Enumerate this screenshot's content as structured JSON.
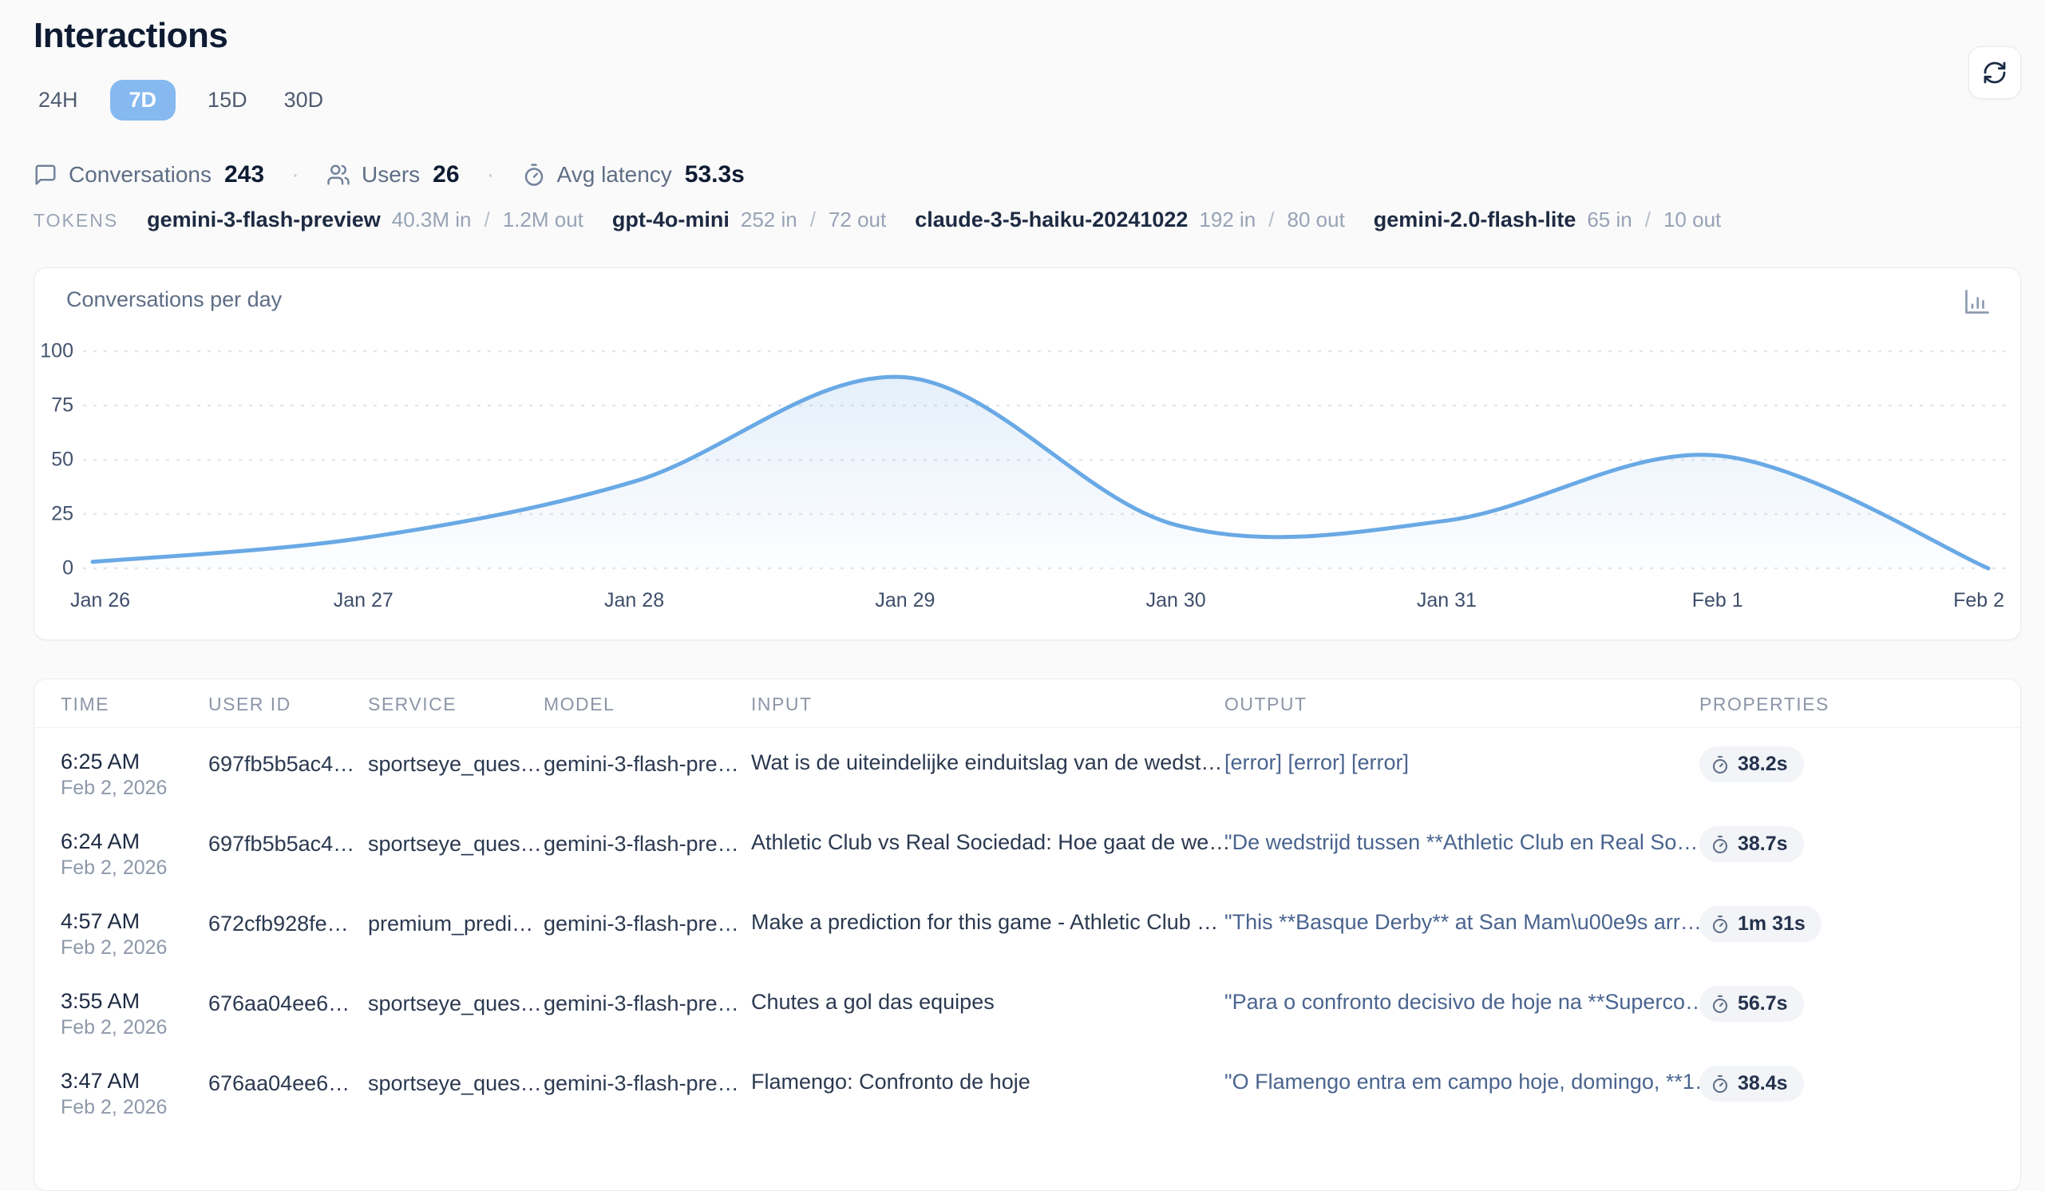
{
  "page": {
    "title": "Interactions"
  },
  "toolbar": {
    "refresh_icon": "refresh"
  },
  "time_range_tabs": [
    {
      "label": "24H",
      "active": false
    },
    {
      "label": "7D",
      "active": true
    },
    {
      "label": "15D",
      "active": false
    },
    {
      "label": "30D",
      "active": false
    }
  ],
  "stats_separator": "·",
  "stats": [
    {
      "icon": "chat-bubble-icon",
      "label": "Conversations",
      "value": "243"
    },
    {
      "icon": "users-icon",
      "label": "Users",
      "value": "26"
    },
    {
      "icon": "stopwatch-icon",
      "label": "Avg latency",
      "value": "53.3s"
    }
  ],
  "tokens": {
    "label": "TOKENS",
    "separator": "/",
    "models": [
      {
        "name": "gemini-3-flash-preview",
        "in": "40.3M in",
        "out": "1.2M out"
      },
      {
        "name": "gpt-4o-mini",
        "in": "252 in",
        "out": "72 out"
      },
      {
        "name": "claude-3-5-haiku-20241022",
        "in": "192 in",
        "out": "80 out"
      },
      {
        "name": "gemini-2.0-flash-lite",
        "in": "65 in",
        "out": "10 out"
      }
    ]
  },
  "chart_card": {
    "title": "Conversations per day",
    "icon": "bar-chart-icon"
  },
  "chart_data": {
    "type": "area",
    "title": "Conversations per day",
    "x": [
      "Jan 26",
      "Jan 27",
      "Jan 28",
      "Jan 29",
      "Jan 30",
      "Jan 31",
      "Feb 1",
      "Feb 2"
    ],
    "values": [
      3,
      14,
      40,
      88,
      20,
      22,
      52,
      0
    ],
    "ylim": [
      0,
      100
    ],
    "yticks": [
      0,
      25,
      50,
      75,
      100
    ],
    "grid": "dashed-horizontal",
    "line_color": "#69a9e5",
    "fill_color": "#7db3e6",
    "legend": "none"
  },
  "table": {
    "columns": [
      "TIME",
      "USER ID",
      "SERVICE",
      "MODEL",
      "INPUT",
      "OUTPUT",
      "PROPERTIES"
    ],
    "rows": [
      {
        "time": "6:25 AM",
        "date": "Feb 2, 2026",
        "user_id": "697fb5b5ac4…",
        "service": "sportseye_ques…",
        "model": "gemini-3-flash-pre…",
        "input": "Wat is de uiteindelijke einduitslag van de wedst…",
        "output": "[error] [error] [error]",
        "latency": "38.2s"
      },
      {
        "time": "6:24 AM",
        "date": "Feb 2, 2026",
        "user_id": "697fb5b5ac4…",
        "service": "sportseye_ques…",
        "model": "gemini-3-flash-pre…",
        "input": "Athletic Club vs Real Sociedad: Hoe gaat de we…",
        "output": "\"De wedstrijd tussen **Athletic Club en Real So…",
        "latency": "38.7s"
      },
      {
        "time": "4:57 AM",
        "date": "Feb 2, 2026",
        "user_id": "672cfb928fe…",
        "service": "premium_predi…",
        "model": "gemini-3-flash-pre…",
        "input": "Make a prediction for this game - Athletic Club …",
        "output": "\"This **Basque Derby** at San Mam\\u00e9s arr…",
        "latency": "1m 31s"
      },
      {
        "time": "3:55 AM",
        "date": "Feb 2, 2026",
        "user_id": "676aa04ee6…",
        "service": "sportseye_ques…",
        "model": "gemini-3-flash-pre…",
        "input": "Chutes a gol das equipes",
        "output": "\"Para o confronto decisivo de hoje na **Superco…",
        "latency": "56.7s"
      },
      {
        "time": "3:47 AM",
        "date": "Feb 2, 2026",
        "user_id": "676aa04ee6…",
        "service": "sportseye_ques…",
        "model": "gemini-3-flash-pre…",
        "input": "Flamengo: Confronto de hoje",
        "output": "\"O Flamengo entra em campo hoje, domingo, **1…",
        "latency": "38.4s"
      }
    ]
  }
}
